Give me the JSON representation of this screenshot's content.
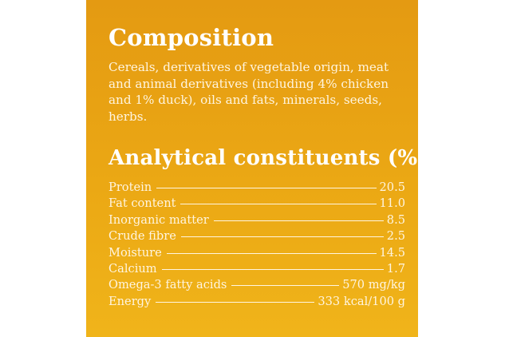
{
  "composition": {
    "title": "Composition",
    "text": "Cereals, derivatives of vegetable origin, meat and animal derivatives (including 4% chicken and 1% duck), oils and fats, minerals, seeds, herbs."
  },
  "analytical": {
    "title": "Analytical constituents (%)",
    "rows": [
      {
        "label": "Protein",
        "value": "20.5"
      },
      {
        "label": "Fat content",
        "value": "11.0"
      },
      {
        "label": "Inorganic matter",
        "value": "8.5"
      },
      {
        "label": "Crude fibre",
        "value": "2.5"
      },
      {
        "label": "Moisture",
        "value": "14.5"
      },
      {
        "label": "Calcium",
        "value": "1.7"
      },
      {
        "label": "Omega-3 fatty acids",
        "value": "570 mg/kg"
      },
      {
        "label": "Energy",
        "value": "333 kcal/100 g"
      }
    ]
  },
  "colors": {
    "panel_top": "#e49a12",
    "panel_bottom": "#f0b41a",
    "text": "#fff5e0"
  }
}
